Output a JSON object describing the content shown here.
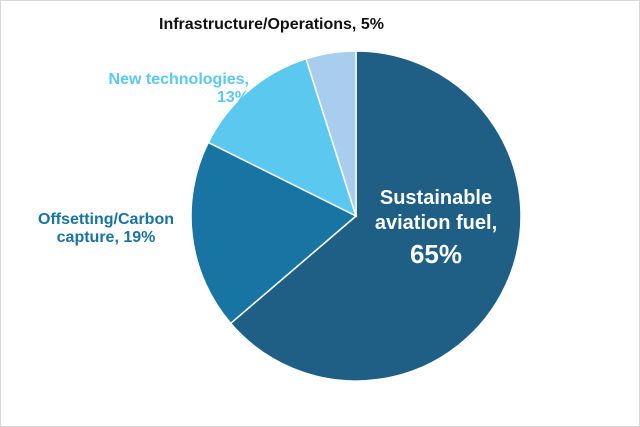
{
  "chart_data": {
    "type": "pie",
    "title": "",
    "slices": [
      {
        "label": "Sustainable aviation fuel",
        "value": 65,
        "color": "#1f5f85"
      },
      {
        "label": "Offsetting/Carbon capture",
        "value": 19,
        "color": "#1874a3"
      },
      {
        "label": "New technologies",
        "value": 13,
        "color": "#5bc8ef"
      },
      {
        "label": "Infrastructure/Operations",
        "value": 5,
        "color": "#a9cdef"
      }
    ],
    "data_labels": {
      "saf_line1": "Sustainable",
      "saf_line2": "aviation fuel,",
      "saf_pct": "65%",
      "offset_line1": "Offsetting/Carbon",
      "offset_line2": "capture, 19%",
      "newtech_line1": "New technologies,",
      "newtech_line2": "13%",
      "infra": "Infrastructure/Operations, 5%"
    },
    "label_colors": {
      "infra": "#111111",
      "newtech": "#5bc8ef",
      "offset": "#1874a3",
      "saf": "#ffffff"
    }
  }
}
